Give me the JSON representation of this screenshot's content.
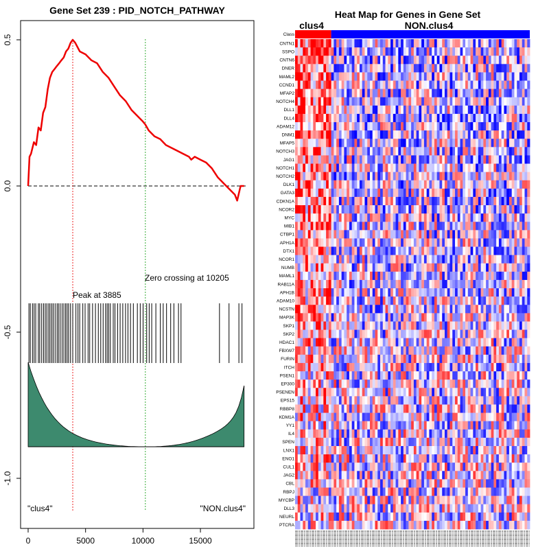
{
  "chart_data": [
    {
      "type": "line",
      "title": "Gene Set  239 : PID_NOTCH_PATHWAY",
      "xlim": [
        0,
        19000
      ],
      "ylim": [
        -1.12,
        0.55
      ],
      "x_ticks": [
        "0",
        "5000",
        "10000",
        "15000"
      ],
      "x_tick_values": [
        0,
        5000,
        10000,
        15000
      ],
      "y_ticks": [
        "0.5",
        "0.0",
        "-0.5",
        "-1.0"
      ],
      "y_tick_values": [
        0.5,
        0.0,
        -0.5,
        -1.0
      ],
      "running_es": {
        "x": [
          0,
          120,
          250,
          500,
          700,
          900,
          1100,
          1300,
          1500,
          1700,
          1900,
          2100,
          2300,
          2500,
          2700,
          2900,
          3100,
          3300,
          3500,
          3700,
          3885,
          4100,
          4500,
          5000,
          5500,
          6000,
          6500,
          7000,
          7500,
          8000,
          8500,
          9000,
          9500,
          10000,
          10205,
          10500,
          11000,
          11500,
          12000,
          12500,
          13000,
          13500,
          14000,
          14200,
          14500,
          15000,
          15500,
          16000,
          16500,
          17000,
          17500,
          18000,
          18200,
          18500,
          18800
        ],
        "y": [
          0.0,
          0.1,
          0.11,
          0.15,
          0.14,
          0.2,
          0.19,
          0.25,
          0.27,
          0.33,
          0.37,
          0.39,
          0.4,
          0.41,
          0.42,
          0.43,
          0.44,
          0.46,
          0.47,
          0.49,
          0.5,
          0.49,
          0.46,
          0.45,
          0.43,
          0.42,
          0.39,
          0.37,
          0.34,
          0.31,
          0.29,
          0.26,
          0.24,
          0.22,
          0.21,
          0.19,
          0.17,
          0.16,
          0.14,
          0.13,
          0.12,
          0.11,
          0.1,
          0.09,
          0.1,
          0.09,
          0.08,
          0.06,
          0.03,
          0.01,
          -0.01,
          -0.03,
          -0.05,
          0.0,
          0.0
        ]
      },
      "peak": {
        "x": 3885,
        "label": "Peak at 3885"
      },
      "zero_crossing": {
        "x": 10205,
        "label": "Zero crossing at 10205"
      },
      "hit_positions": [
        70,
        190,
        380,
        520,
        660,
        890,
        1010,
        1180,
        1340,
        1490,
        1630,
        1790,
        1910,
        2060,
        2190,
        2350,
        2520,
        2640,
        2790,
        2960,
        3110,
        3260,
        3390,
        3520,
        3690,
        3885,
        4160,
        4340,
        4490,
        4760,
        4960,
        5220,
        5360,
        5610,
        5860,
        6110,
        6320,
        6530,
        6740,
        6880,
        7010,
        7160,
        7410,
        7560,
        7790,
        8010,
        8240,
        8480,
        8690,
        8910,
        9160,
        9510,
        9760,
        10010,
        10320,
        10540,
        10760,
        11120,
        11510,
        11760,
        12050,
        12410,
        12690,
        13090,
        13310,
        16660,
        17490,
        18350,
        18620
      ],
      "ranked_metric": {
        "max": 0.55,
        "min": -1.22,
        "zero_x": 10205
      },
      "left_label": "\"clus4\"",
      "right_label": "\"NON.clus4\"",
      "colors": {
        "es_line": "#ee0000",
        "peak_line": "#ee2222",
        "zero_line": "#33aa33",
        "metric_fill": "#3d8a6e"
      }
    },
    {
      "type": "heatmap",
      "title": "Heat Map for Genes in Gene Set",
      "class_label_row": "Class",
      "classes": [
        {
          "name": "clus4",
          "color": "#ff0000",
          "n": 14
        },
        {
          "name": "NON.clus4",
          "color": "#0000ff",
          "n": 77
        }
      ],
      "genes": [
        "CNTN1",
        "SSPO",
        "CNTN6",
        "DNER",
        "MAML2",
        "CCND1",
        "MFAP2",
        "NOTCH4",
        "DLL1",
        "DLL4",
        "ADAM12",
        "DNM1",
        "MFAP5",
        "NOTCH3",
        "JAG1",
        "NOTCH1",
        "NOTCH2",
        "DLK1",
        "GATA3",
        "CDKN1A",
        "NCOR2",
        "MYC",
        "MIB1",
        "CTBP1",
        "APH1A",
        "DTX1",
        "NCOR1",
        "NUMB",
        "MAML1",
        "RAB11A",
        "APH1B",
        "ADAM10",
        "NCSTN",
        "MAP3K",
        "SKP1",
        "SKP2",
        "HDAC1",
        "FBXW7",
        "FURIN",
        "ITCH",
        "PSEN1",
        "EP300",
        "PSENEN",
        "EPS15",
        "RBBP8",
        "KDM1A",
        "YY1",
        "IL4",
        "SPEN",
        "LNX1",
        "ENO1",
        "CUL1",
        "JAG2",
        "CBL",
        "RBPJ",
        "MYCBP",
        "DLL3",
        "NEURL",
        "PTCRA"
      ],
      "colors": {
        "high": "#ff0000",
        "low": "#0000ff",
        "mid": "#ffffff"
      }
    }
  ]
}
